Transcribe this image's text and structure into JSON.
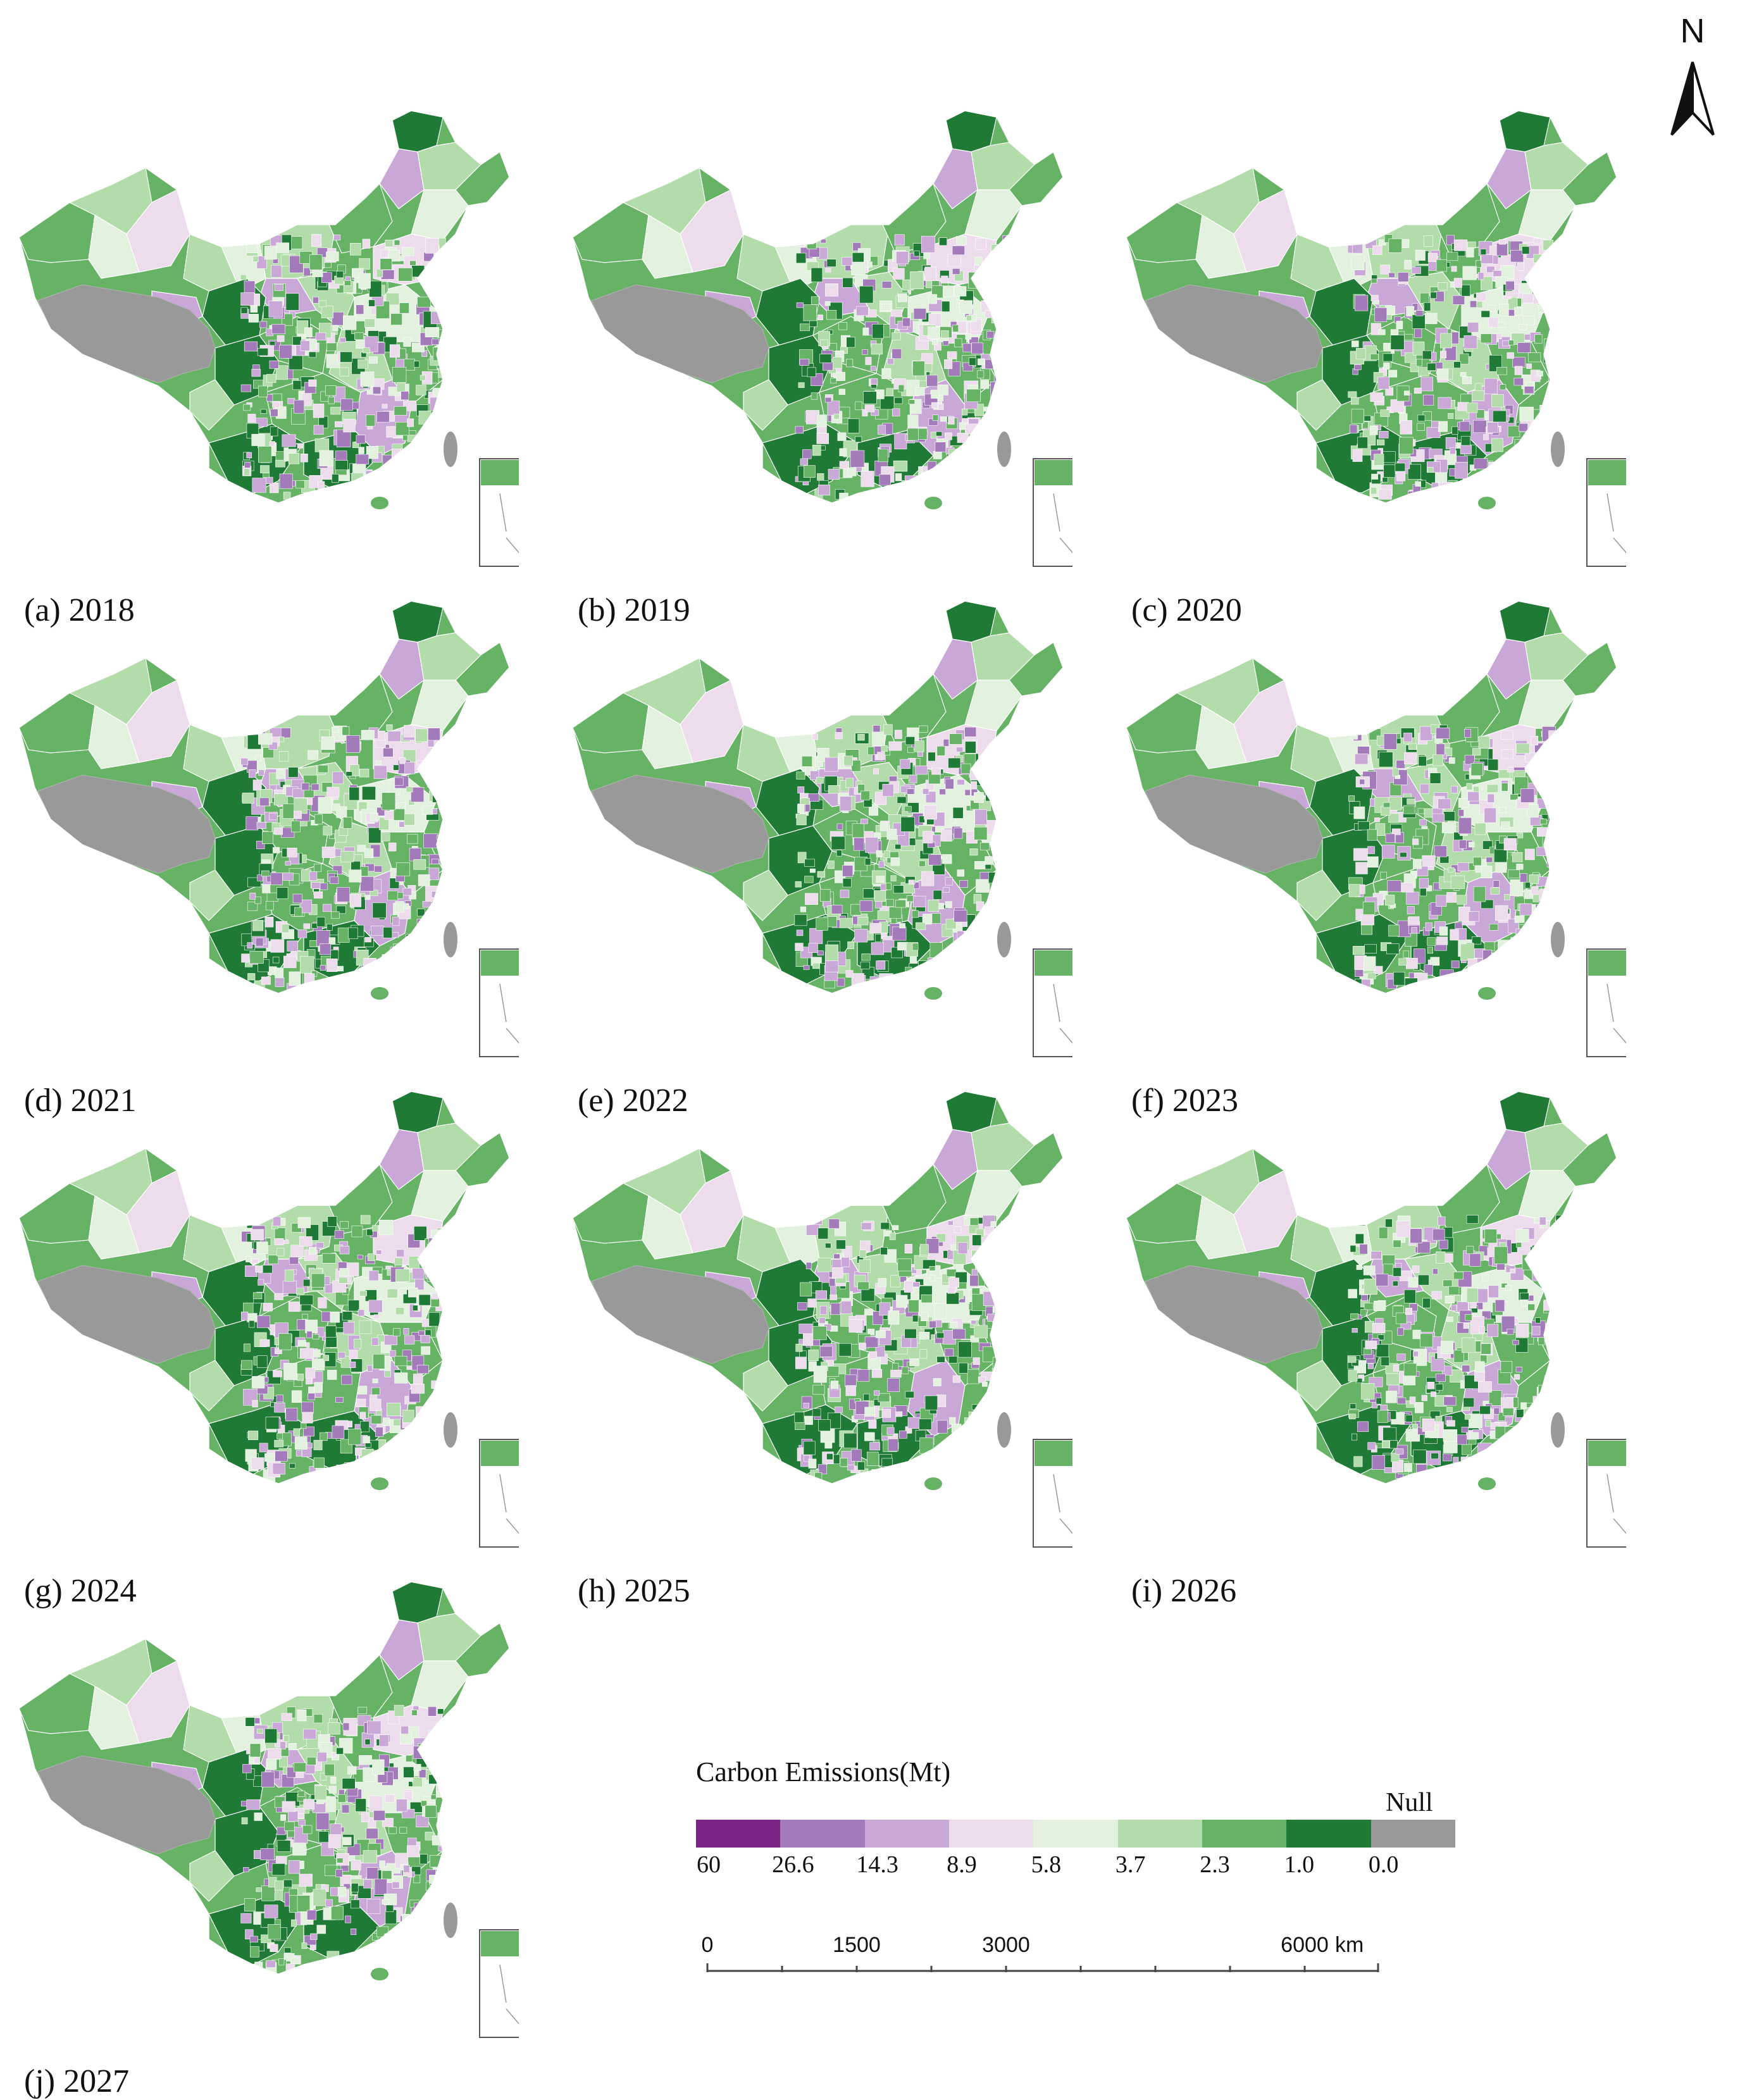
{
  "panels": [
    {
      "label": "(a) 2018",
      "variant": 0
    },
    {
      "label": "(b) 2019",
      "variant": 1
    },
    {
      "label": "(c) 2020",
      "variant": 2
    },
    {
      "label": "(d) 2021",
      "variant": 3
    },
    {
      "label": "(e) 2022",
      "variant": 4
    },
    {
      "label": "(f) 2023",
      "variant": 5
    },
    {
      "label": "(g) 2024",
      "variant": 6
    },
    {
      "label": "(h) 2025",
      "variant": 7
    },
    {
      "label": "(i) 2026",
      "variant": 8
    },
    {
      "label": "(j) 2027",
      "variant": 9
    }
  ],
  "north_arrow": {
    "letter": "N"
  },
  "legend": {
    "title": "Carbon Emissions(Mt)",
    "null_label": "Null",
    "colors": [
      "#7b2283",
      "#a47bba",
      "#c9a7d7",
      "#ecdcec",
      "#e3f1df",
      "#b2dca9",
      "#66b366",
      "#1f7a35",
      "#999999"
    ],
    "breaks": [
      "60",
      "26.6",
      "14.3",
      "8.9",
      "5.8",
      "3.7",
      "2.3",
      "1.0",
      "0.0"
    ]
  },
  "scale_bar": {
    "labels": [
      "0",
      "1500",
      "3000",
      "6000"
    ],
    "unit": "km"
  }
}
